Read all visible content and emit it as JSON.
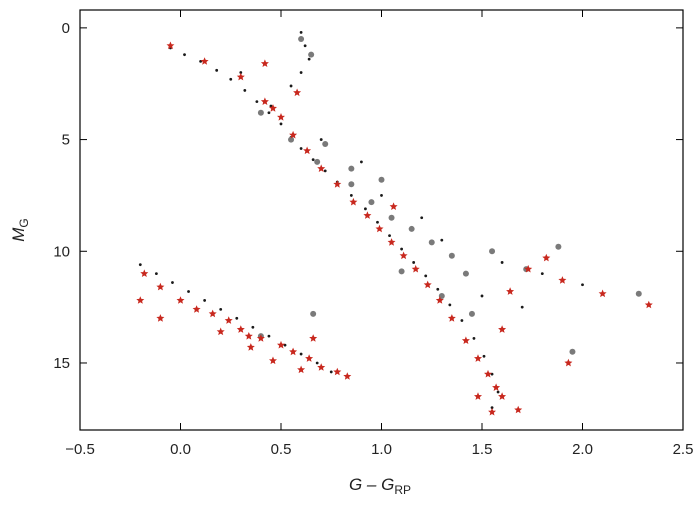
{
  "chart_data": {
    "type": "scatter",
    "title": "",
    "xlabel": "G – G_RP",
    "xlabel_main": "G – G",
    "xlabel_sub": "RP",
    "ylabel_main": "M",
    "ylabel_sub": "G",
    "xlim": [
      -0.5,
      2.5
    ],
    "ylim": [
      18.0,
      -0.8
    ],
    "y_inverted": true,
    "xticks": [
      -0.5,
      0.0,
      0.5,
      1.0,
      1.5,
      2.0,
      2.5
    ],
    "xtick_labels": [
      "−0.5",
      "0.0",
      "0.5",
      "1.0",
      "1.5",
      "2.0",
      "2.5"
    ],
    "yticks": [
      0,
      5,
      10,
      15
    ],
    "ytick_labels": [
      "0",
      "5",
      "10",
      "15"
    ],
    "grid": false,
    "legend": "none",
    "colors": {
      "background_stars": "#1a1a1a",
      "highlighted_stars": "#c8281e",
      "grey_points": "#7a7a7a",
      "frame": "#000000"
    },
    "series": [
      {
        "marker": "small-dot",
        "color": "#1a1a1a",
        "points": [
          [
            -0.05,
            0.9
          ],
          [
            0.02,
            1.2
          ],
          [
            0.1,
            1.5
          ],
          [
            0.18,
            1.9
          ],
          [
            0.25,
            2.3
          ],
          [
            0.32,
            2.8
          ],
          [
            0.38,
            3.3
          ],
          [
            0.44,
            3.8
          ],
          [
            0.5,
            4.3
          ],
          [
            0.55,
            4.9
          ],
          [
            0.6,
            5.4
          ],
          [
            0.66,
            5.9
          ],
          [
            0.72,
            6.4
          ],
          [
            0.78,
            6.9
          ],
          [
            0.85,
            7.5
          ],
          [
            0.92,
            8.1
          ],
          [
            0.98,
            8.7
          ],
          [
            1.04,
            9.3
          ],
          [
            1.1,
            9.9
          ],
          [
            1.16,
            10.5
          ],
          [
            1.22,
            11.1
          ],
          [
            1.28,
            11.7
          ],
          [
            1.34,
            12.4
          ],
          [
            1.4,
            13.1
          ],
          [
            1.46,
            13.9
          ],
          [
            1.51,
            14.7
          ],
          [
            1.55,
            15.5
          ],
          [
            1.58,
            16.3
          ],
          [
            1.55,
            17.0
          ],
          [
            -0.2,
            10.6
          ],
          [
            -0.12,
            11.0
          ],
          [
            -0.04,
            11.4
          ],
          [
            0.04,
            11.8
          ],
          [
            0.12,
            12.2
          ],
          [
            0.2,
            12.6
          ],
          [
            0.28,
            13.0
          ],
          [
            0.36,
            13.4
          ],
          [
            0.44,
            13.8
          ],
          [
            0.52,
            14.2
          ],
          [
            0.6,
            14.6
          ],
          [
            0.68,
            15.0
          ],
          [
            0.75,
            15.4
          ],
          [
            0.6,
            0.2
          ],
          [
            0.62,
            0.8
          ],
          [
            0.64,
            1.4
          ],
          [
            0.6,
            2.0
          ],
          [
            0.55,
            2.6
          ],
          [
            0.3,
            2.0
          ],
          [
            0.45,
            3.5
          ],
          [
            0.7,
            5.0
          ],
          [
            1.0,
            7.5
          ],
          [
            1.3,
            9.5
          ],
          [
            1.6,
            10.5
          ],
          [
            1.8,
            11.0
          ],
          [
            2.0,
            11.5
          ],
          [
            0.9,
            6.0
          ],
          [
            1.2,
            8.5
          ],
          [
            1.5,
            12.0
          ],
          [
            1.7,
            12.5
          ]
        ]
      },
      {
        "marker": "grey-dot",
        "color": "#7a7a7a",
        "points": [
          [
            0.4,
            3.8
          ],
          [
            0.55,
            5.0
          ],
          [
            0.68,
            6.0
          ],
          [
            0.85,
            7.0
          ],
          [
            0.95,
            7.8
          ],
          [
            1.05,
            8.5
          ],
          [
            1.15,
            9.0
          ],
          [
            1.25,
            9.6
          ],
          [
            1.35,
            10.2
          ],
          [
            1.42,
            11.0
          ],
          [
            1.3,
            12.0
          ],
          [
            1.45,
            12.8
          ],
          [
            0.72,
            5.2
          ],
          [
            1.0,
            6.8
          ],
          [
            1.55,
            10.0
          ],
          [
            1.72,
            10.8
          ],
          [
            1.88,
            9.8
          ],
          [
            2.28,
            11.9
          ],
          [
            1.95,
            14.5
          ],
          [
            0.66,
            12.8
          ],
          [
            0.4,
            13.8
          ],
          [
            0.85,
            6.3
          ],
          [
            1.1,
            10.9
          ],
          [
            0.6,
            0.5
          ],
          [
            0.65,
            1.2
          ]
        ]
      },
      {
        "marker": "red-star",
        "color": "#c8281e",
        "points": [
          [
            -0.05,
            0.8
          ],
          [
            0.12,
            1.5
          ],
          [
            0.3,
            2.2
          ],
          [
            0.42,
            3.3
          ],
          [
            0.46,
            3.6
          ],
          [
            0.5,
            4.0
          ],
          [
            0.56,
            4.8
          ],
          [
            0.63,
            5.5
          ],
          [
            0.7,
            6.3
          ],
          [
            0.78,
            7.0
          ],
          [
            0.86,
            7.8
          ],
          [
            0.93,
            8.4
          ],
          [
            0.99,
            9.0
          ],
          [
            1.05,
            9.6
          ],
          [
            1.11,
            10.2
          ],
          [
            1.17,
            10.8
          ],
          [
            1.23,
            11.5
          ],
          [
            1.29,
            12.2
          ],
          [
            1.35,
            13.0
          ],
          [
            1.42,
            14.0
          ],
          [
            1.48,
            14.8
          ],
          [
            1.53,
            15.5
          ],
          [
            1.57,
            16.1
          ],
          [
            1.6,
            16.5
          ],
          [
            1.55,
            17.2
          ],
          [
            1.64,
            11.8
          ],
          [
            1.73,
            10.8
          ],
          [
            1.82,
            10.3
          ],
          [
            1.9,
            11.3
          ],
          [
            2.1,
            11.9
          ],
          [
            2.33,
            12.4
          ],
          [
            1.93,
            15.0
          ],
          [
            1.6,
            13.5
          ],
          [
            1.48,
            16.5
          ],
          [
            1.68,
            17.1
          ],
          [
            0.42,
            1.6
          ],
          [
            0.58,
            2.9
          ],
          [
            1.06,
            8.0
          ],
          [
            -0.18,
            11.0
          ],
          [
            -0.1,
            11.6
          ],
          [
            0.0,
            12.2
          ],
          [
            0.08,
            12.6
          ],
          [
            0.16,
            12.8
          ],
          [
            0.24,
            13.1
          ],
          [
            0.3,
            13.5
          ],
          [
            0.34,
            13.8
          ],
          [
            0.4,
            13.9
          ],
          [
            0.5,
            14.2
          ],
          [
            0.56,
            14.5
          ],
          [
            0.64,
            14.8
          ],
          [
            0.7,
            15.2
          ],
          [
            0.78,
            15.4
          ],
          [
            0.83,
            15.6
          ],
          [
            -0.2,
            12.2
          ],
          [
            -0.1,
            13.0
          ],
          [
            0.35,
            14.3
          ],
          [
            0.2,
            13.6
          ],
          [
            0.46,
            14.9
          ],
          [
            0.6,
            15.3
          ],
          [
            0.66,
            13.9
          ]
        ]
      }
    ]
  }
}
